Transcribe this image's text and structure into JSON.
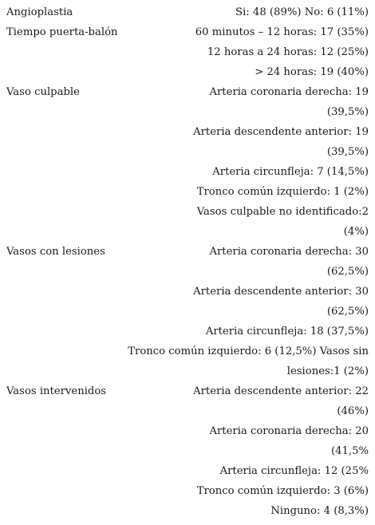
{
  "rows": [
    {
      "label": "Angioplastia",
      "lines": [
        "Si: 48 (89%) No: 6 (11%)"
      ]
    },
    {
      "label": "Tiempo puerta-balón",
      "lines": [
        "60 minutos – 12 horas: 17 (35%)",
        "12 horas a 24 horas: 12 (25%)",
        "> 24 horas: 19 (40%)"
      ]
    },
    {
      "label": "Vaso culpable",
      "lines": [
        "Arteria coronaria derecha: 19",
        "(39,5%)",
        "Arteria descendente anterior: 19",
        "(39,5%)",
        "Arteria circunfleja: 7 (14,5%)",
        "Tronco común izquierdo: 1 (2%)",
        "Vasos culpable no identificado:2",
        "(4%)"
      ]
    },
    {
      "label": "Vasos con lesiones",
      "lines": [
        "Arteria coronaria derecha: 30",
        "(62,5%)",
        "Arteria descendente anterior: 30",
        "(62,5%)",
        "Arteria circunfleja: 18 (37,5%)",
        "Tronco común izquierdo: 6 (12,5%) Vasos sin",
        "lesiones:1 (2%)"
      ]
    },
    {
      "label": "Vasos intervenidos",
      "lines": [
        "Arteria descendente anterior: 22",
        "(46%)",
        "Arteria coronaria derecha: 20",
        "(41,5%",
        "Arteria circunfleja: 12 (25%",
        "Tronco común izquierdo: 3 (6%)",
        "Ninguno: 4 (8,3%)"
      ]
    }
  ]
}
